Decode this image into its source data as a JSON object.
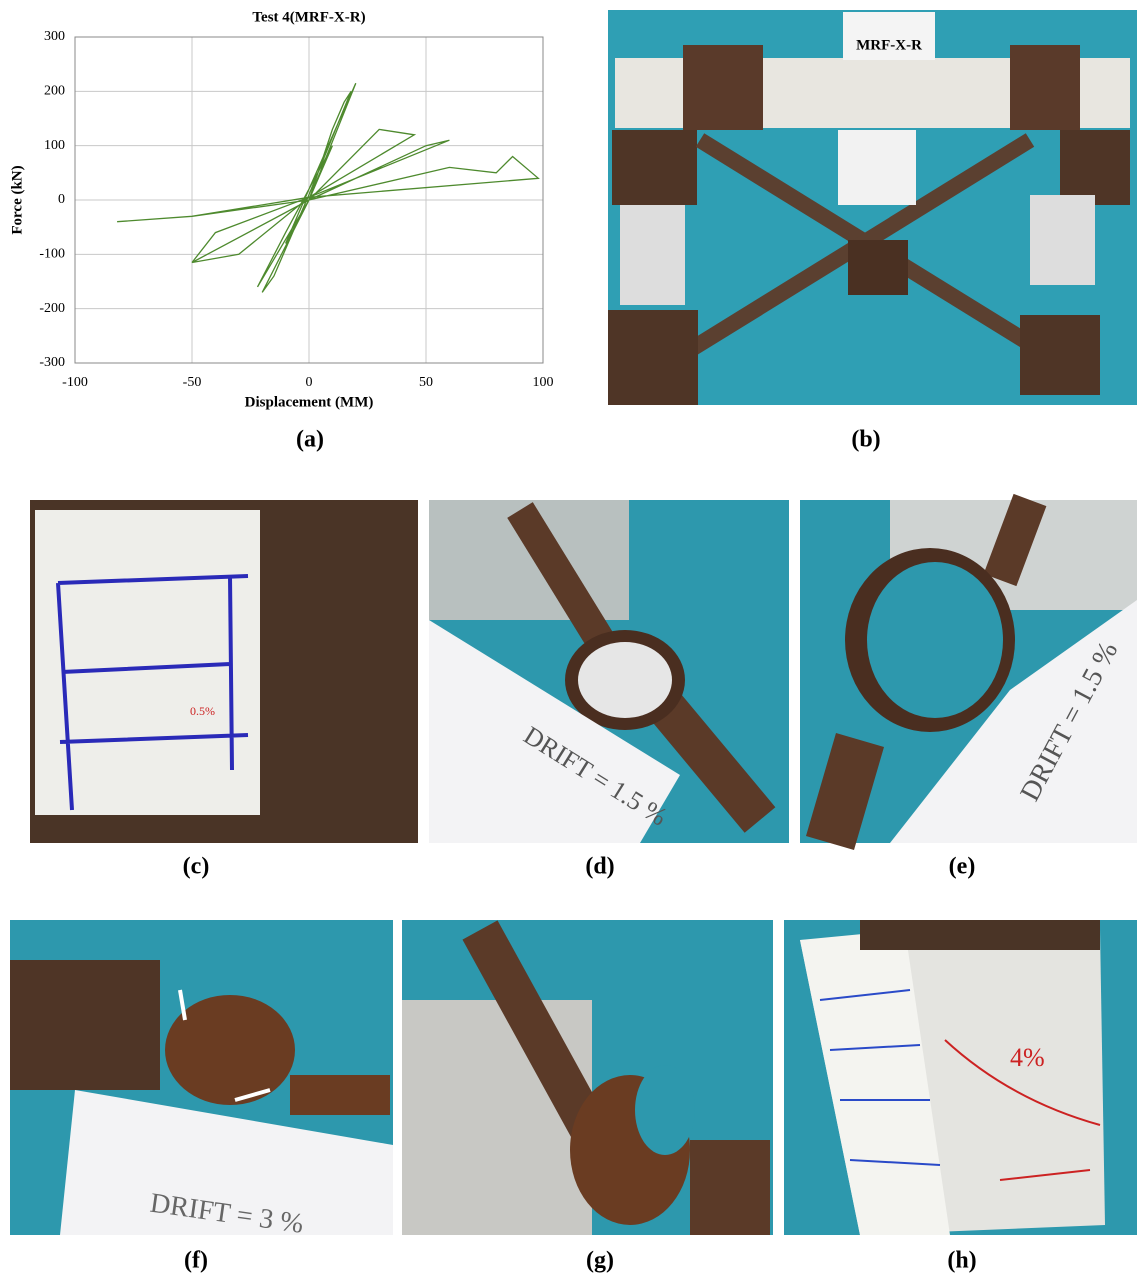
{
  "chart_data": {
    "type": "line",
    "title": "Test 4(MRF-X-R)",
    "x_label": "Displacement (MM)",
    "y_label": "Force (kN)",
    "x": [
      0,
      5,
      10,
      0,
      -5,
      -10,
      0,
      10,
      15,
      18,
      0,
      -15,
      -20,
      0,
      20,
      0,
      -10,
      -22,
      0,
      30,
      45,
      0,
      -30,
      -50,
      0,
      50,
      60,
      0,
      -40,
      -50,
      0,
      60,
      80,
      87,
      98,
      0,
      -50,
      -82,
      -50,
      0
    ],
    "series": [
      {
        "color": "#4e8a2e",
        "values": [
          0,
          50,
          100,
          20,
          -30,
          -80,
          0,
          130,
          180,
          200,
          10,
          -140,
          -170,
          0,
          215,
          20,
          -60,
          -160,
          0,
          130,
          120,
          5,
          -100,
          -115,
          0,
          100,
          110,
          5,
          -60,
          -115,
          0,
          60,
          50,
          80,
          40,
          5,
          -30,
          -40,
          -30,
          0
        ]
      }
    ],
    "xlim": [
      -100,
      100
    ],
    "xticks": [
      -100,
      -50,
      0,
      50,
      100
    ],
    "ylim": [
      -300,
      300
    ],
    "yticks": [
      -300,
      -200,
      -100,
      0,
      100,
      200,
      300
    ],
    "grid": true
  },
  "panels": [
    "(a)",
    "(b)",
    "(c)",
    "(d)",
    "(e)",
    "(f)",
    "(g)",
    "(h)"
  ],
  "photo_texts": {
    "b": "MRF-X-R",
    "c": "0.5%",
    "d": "DRIFT = 1.5 %",
    "e": "DRIFT = 1.5 %",
    "f": "DRIFT = 3 %",
    "h": "4%"
  }
}
